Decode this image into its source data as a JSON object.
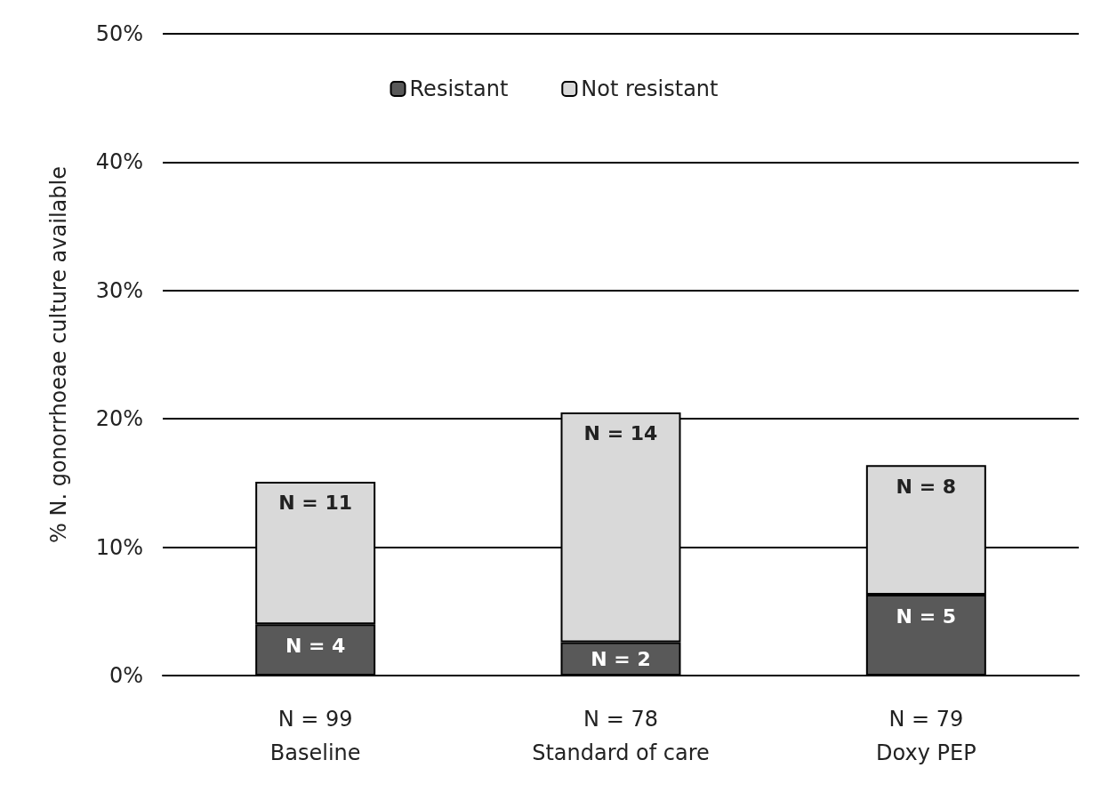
{
  "chart_data": {
    "type": "bar",
    "stacked": true,
    "ylabel": "% N. gonorrhoeae culture available",
    "categories": [
      "N = 99\nBaseline",
      "N = 78\nStandard of care",
      "N = 79\nDoxy PEP"
    ],
    "series": [
      {
        "name": "Resistant",
        "color": "#595959",
        "values": [
          4.0,
          2.6,
          6.3
        ]
      },
      {
        "name": "Not resistant",
        "color": "#d9d9d9",
        "values": [
          11.1,
          17.9,
          10.1
        ]
      }
    ],
    "annotations": [
      {
        "text": "N = 4",
        "x": "N = 99\nBaseline",
        "y": 4.0
      },
      {
        "text": "N = 11",
        "x": "N = 99\nBaseline",
        "y": 15.1
      },
      {
        "text": "N = 2",
        "x": "N = 78\nStandard of care",
        "y": 2.6
      },
      {
        "text": "N = 14",
        "x": "N = 78\nStandard of care",
        "y": 20.5
      },
      {
        "text": "N = 5",
        "x": "N = 79\nDoxy PEP",
        "y": 6.3
      },
      {
        "text": "N = 8",
        "x": "N = 79\nDoxy PEP",
        "y": 16.4
      }
    ],
    "ylim": [
      0,
      50
    ],
    "yticks": [
      {
        "value": 0,
        "label": "0%"
      },
      {
        "value": 10,
        "label": "10%"
      },
      {
        "value": 20,
        "label": "20%"
      },
      {
        "value": 30,
        "label": "30%"
      },
      {
        "value": 40,
        "label": "40%"
      },
      {
        "value": 50,
        "label": "50%"
      }
    ],
    "grid": "y",
    "legend": "top"
  }
}
